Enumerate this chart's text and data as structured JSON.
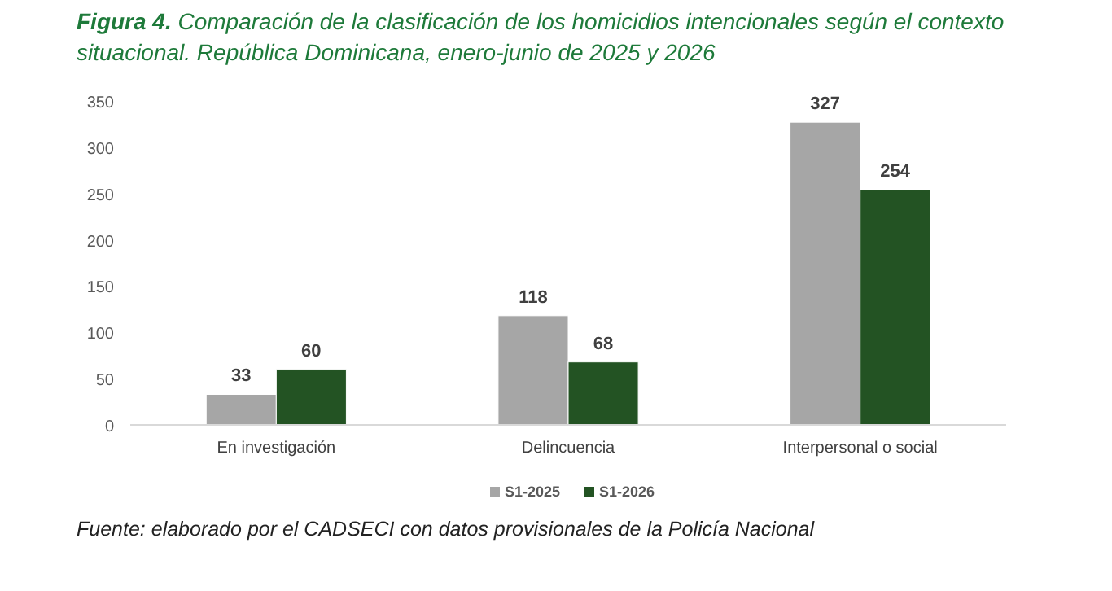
{
  "chart_data": {
    "type": "bar",
    "title": "Figura 4. Comparación de la clasificación de los homicidios intencionales según el contexto situacional. República Dominicana, enero-junio de 2025 y 2026",
    "categories": [
      "En investigación",
      "Delincuencia",
      "Interpersonal o social"
    ],
    "series": [
      {
        "name": "S1-2025",
        "color": "#a6a6a6",
        "values": [
          33,
          118,
          327
        ]
      },
      {
        "name": "S1-2026",
        "color": "#235323",
        "values": [
          60,
          68,
          254
        ]
      }
    ],
    "ylim": [
      0,
      350
    ],
    "yticks": [
      0,
      50,
      100,
      150,
      200,
      250,
      300,
      350
    ],
    "grid": false,
    "legend": "bottom",
    "data_labels": true,
    "annotations": [
      "Fuente: elaborado por el CADSECI con datos provisionales de la Policía Nacional"
    ]
  }
}
